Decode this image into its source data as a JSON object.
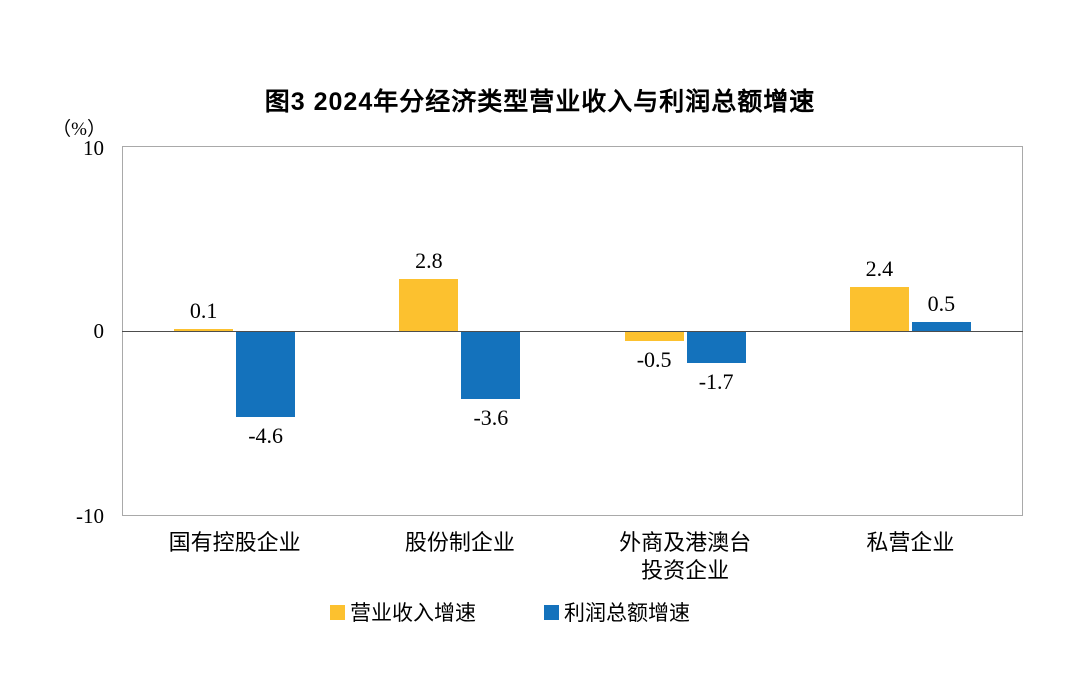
{
  "chart_data": {
    "type": "bar",
    "title": "图3  2024年分经济类型营业收入与利润总额增速",
    "categories": [
      "国有控股企业",
      "股份制企业",
      "外商及港澳台\n投资企业",
      "私营企业"
    ],
    "series": [
      {
        "name": "营业收入增速",
        "color": "#FCC12F",
        "values": [
          0.1,
          2.8,
          -0.5,
          2.4
        ]
      },
      {
        "name": "利润总额增速",
        "color": "#1472BC",
        "values": [
          -4.6,
          -3.6,
          -1.7,
          0.5
        ]
      }
    ],
    "ylabel": "（%）",
    "ylim": [
      -10,
      10
    ],
    "yticks": [
      "10",
      "0",
      "-10"
    ],
    "grid": false,
    "legend_position": "bottom",
    "value_labels_shown": true,
    "plot_border_color": "#a9a9a9",
    "zero_line_color": "#4d4d4d"
  }
}
